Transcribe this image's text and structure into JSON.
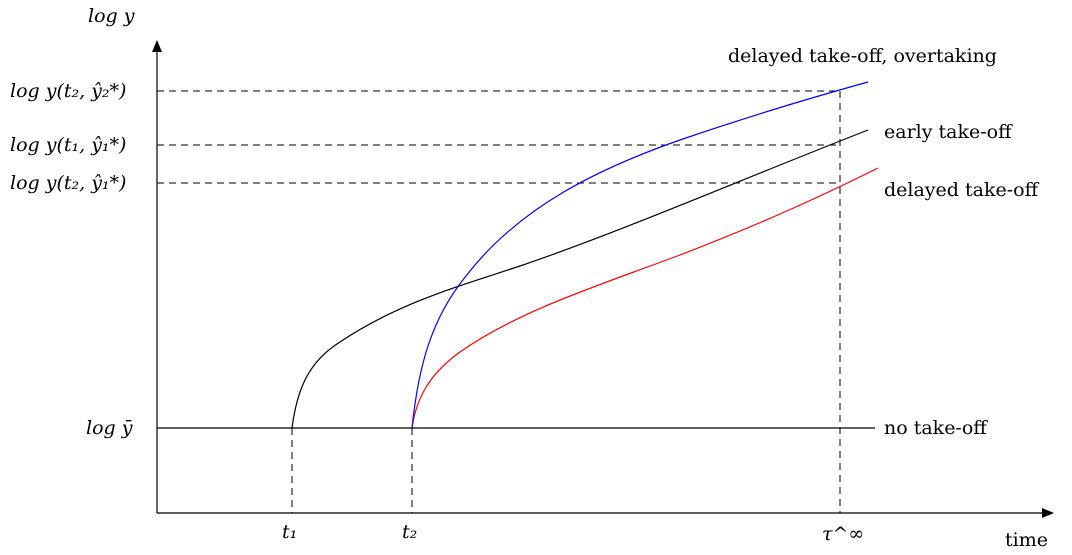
{
  "axes": {
    "y_label": "log y",
    "x_label": "time"
  },
  "y_ticks": {
    "log_ybar": "log ȳ",
    "log_y_t2_yhat2": "log y(t₂, ŷ₂*)",
    "log_y_t1_yhat1": "log y(t₁, ŷ₁*)",
    "log_y_t2_yhat1": "log y(t₂, ŷ₁*)"
  },
  "x_ticks": {
    "t1": "t₁",
    "t2": "t₂",
    "tau_inf": "τ^∞"
  },
  "curves": {
    "no_takeoff": {
      "label": "no take-off",
      "color": "#000000"
    },
    "early_takeoff": {
      "label": "early take-off",
      "color": "#000000"
    },
    "delayed_takeoff": {
      "label": "delayed take-off",
      "color": "#ff0000"
    },
    "delayed_overtaking": {
      "label": "delayed take-off, overtaking",
      "color": "#0000ff"
    }
  }
}
